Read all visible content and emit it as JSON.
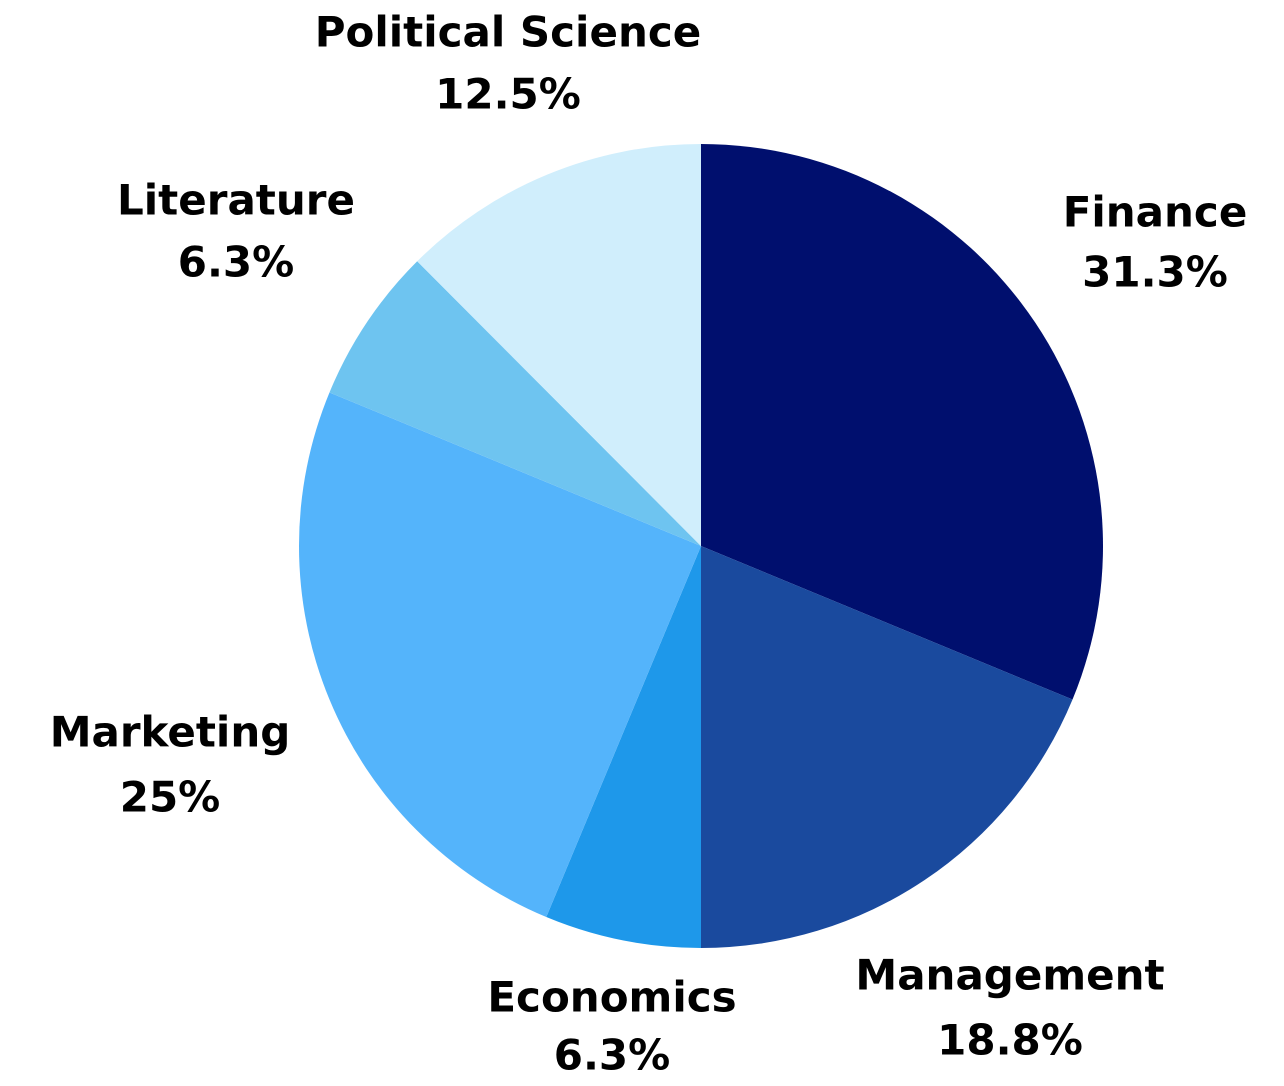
{
  "chart_data": {
    "type": "pie",
    "categories": [
      "Finance",
      "Management",
      "Economics",
      "Marketing",
      "Literature",
      "Political Science"
    ],
    "values": [
      31.3,
      18.8,
      6.3,
      25,
      6.3,
      12.5
    ],
    "value_labels": [
      "31.3%",
      "18.8%",
      "6.3%",
      "25%",
      "6.3%",
      "12.5%"
    ],
    "colors": [
      "#000f6e",
      "#1a4a9e",
      "#1e98ea",
      "#54b4fb",
      "#6ec4f0",
      "#d0eefc"
    ]
  }
}
